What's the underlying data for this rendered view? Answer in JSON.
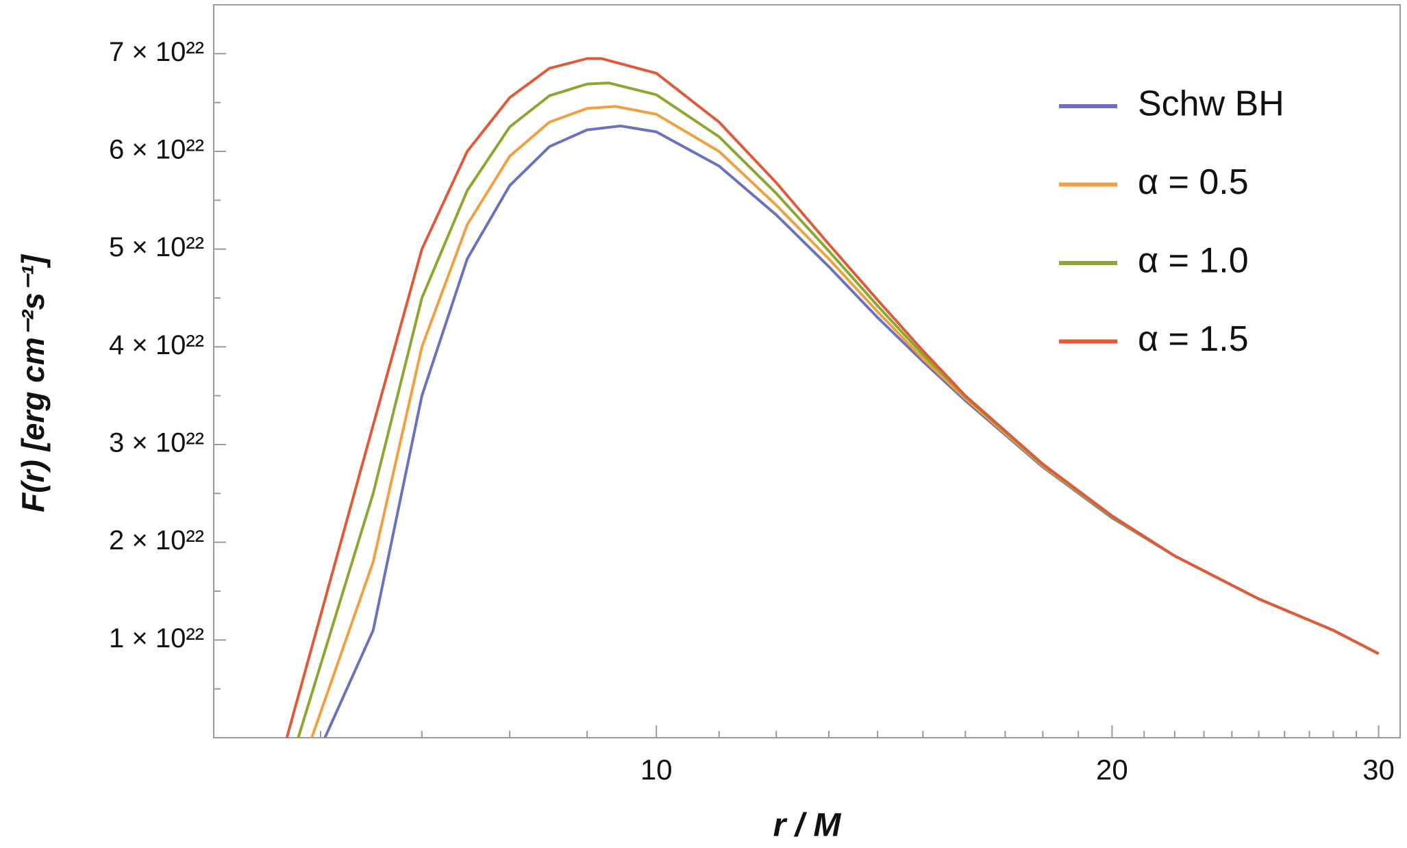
{
  "chart_data": {
    "type": "line",
    "xlabel": "r / M",
    "ylabel": "F(r)  [erg cm⁻²s⁻¹]",
    "xscale": "log",
    "xlim": [
      5.1,
      31
    ],
    "ylim": [
      0,
      7.5e+22
    ],
    "xticks": [
      10,
      20,
      30
    ],
    "xminorticks": [
      6,
      7,
      8,
      9,
      11,
      12,
      13,
      14,
      15,
      16,
      17,
      18,
      19,
      21,
      22,
      23,
      24,
      25,
      26,
      27,
      28,
      29
    ],
    "yticks": [
      {
        "value": 1e+22,
        "label": "1 × 10²²"
      },
      {
        "value": 2e+22,
        "label": "2 × 10²²"
      },
      {
        "value": 3e+22,
        "label": "3 × 10²²"
      },
      {
        "value": 4e+22,
        "label": "4 × 10²²"
      },
      {
        "value": 5e+22,
        "label": "5 × 10²²"
      },
      {
        "value": 6e+22,
        "label": "6 × 10²²"
      },
      {
        "value": 7e+22,
        "label": "7 × 10²²"
      }
    ],
    "yminorticks": [
      5e+21,
      1.5e+22,
      2.5e+22,
      3.5e+22,
      4.5e+22,
      5.5e+22,
      6.5e+22
    ],
    "legend": "upper right",
    "series": [
      {
        "name": "Schw BH",
        "color": "#6b72bd",
        "x": [
          6.04,
          6.5,
          7,
          7.5,
          8,
          8.5,
          9,
          9.47,
          10,
          11,
          12,
          13,
          14,
          15,
          16,
          18,
          20,
          22,
          25,
          28,
          30
        ],
        "values": [
          0,
          1.1e+22,
          3.5e+22,
          4.9e+22,
          5.65e+22,
          6.05e+22,
          6.22e+22,
          6.26e+22,
          6.2e+22,
          5.85e+22,
          5.35e+22,
          4.82e+22,
          4.3e+22,
          3.85e+22,
          3.45e+22,
          2.77e+22,
          2.25e+22,
          1.86e+22,
          1.42e+22,
          1.1e+22,
          8.6e+21
        ]
      },
      {
        "name": "α = 0.5",
        "color": "#f0a040",
        "x": [
          5.92,
          6.5,
          7,
          7.5,
          8,
          8.5,
          9,
          9.4,
          10,
          11,
          12,
          13,
          14,
          15,
          16,
          18,
          20,
          22,
          25,
          28,
          30
        ],
        "values": [
          0,
          1.8e+22,
          4e+22,
          5.25e+22,
          5.95e+22,
          6.3e+22,
          6.44e+22,
          6.46e+22,
          6.38e+22,
          6e+22,
          5.45e+22,
          4.9e+22,
          4.36e+22,
          3.88e+22,
          3.47e+22,
          2.78e+22,
          2.26e+22,
          1.86e+22,
          1.42e+22,
          1.1e+22,
          8.6e+21
        ]
      },
      {
        "name": "α = 1.0",
        "color": "#8aa830",
        "x": [
          5.8,
          6.5,
          7,
          7.5,
          8,
          8.5,
          9,
          9.3,
          10,
          11,
          12,
          13,
          14,
          15,
          16,
          18,
          20,
          22,
          25,
          28,
          30
        ],
        "values": [
          0,
          2.5e+22,
          4.5e+22,
          5.6e+22,
          6.25e+22,
          6.57e+22,
          6.69e+22,
          6.7e+22,
          6.58e+22,
          6.15e+22,
          5.57e+22,
          4.98e+22,
          4.42e+22,
          3.92e+22,
          3.49e+22,
          2.79e+22,
          2.26e+22,
          1.86e+22,
          1.42e+22,
          1.1e+22,
          8.6e+21
        ]
      },
      {
        "name": "α = 1.5",
        "color": "#e05a3a",
        "x": [
          5.7,
          6.5,
          7,
          7.5,
          8,
          8.5,
          9,
          9.2,
          10,
          11,
          12,
          13,
          14,
          15,
          16,
          18,
          20,
          22,
          25,
          28,
          30
        ],
        "values": [
          0,
          3.2e+22,
          5e+22,
          6e+22,
          6.55e+22,
          6.85e+22,
          6.95e+22,
          6.95e+22,
          6.8e+22,
          6.3e+22,
          5.68e+22,
          5.05e+22,
          4.48e+22,
          3.96e+22,
          3.5e+22,
          2.8e+22,
          2.27e+22,
          1.86e+22,
          1.42e+22,
          1.1e+22,
          8.6e+21
        ]
      }
    ]
  }
}
